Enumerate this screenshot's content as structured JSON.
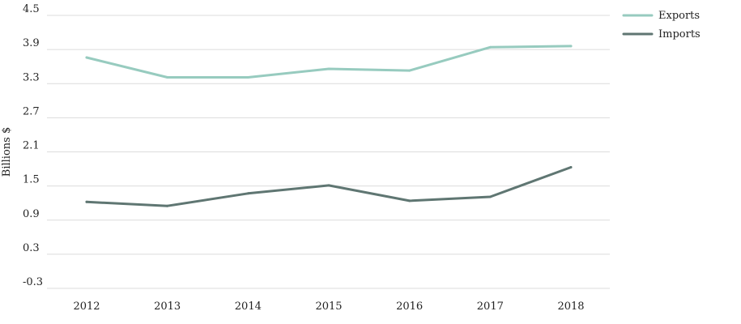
{
  "chart_data": {
    "type": "line",
    "title": "",
    "xlabel": "",
    "ylabel": "Billions $",
    "categories": [
      "2012",
      "2013",
      "2014",
      "2015",
      "2016",
      "2017",
      "2018"
    ],
    "ylim": [
      -0.3,
      4.5
    ],
    "yticks": [
      "-0.3",
      "0.3",
      "0.9",
      "1.5",
      "2.1",
      "2.7",
      "3.3",
      "3.9",
      "4.5"
    ],
    "grid": true,
    "legend_position": "top-right",
    "series": [
      {
        "name": "Exports",
        "color": "#97cbbf",
        "values": [
          3.76,
          3.41,
          3.41,
          3.56,
          3.53,
          3.94,
          3.96
        ]
      },
      {
        "name": "Imports",
        "color": "#5f7672",
        "values": [
          1.22,
          1.15,
          1.37,
          1.51,
          1.24,
          1.31,
          1.83
        ]
      }
    ]
  }
}
